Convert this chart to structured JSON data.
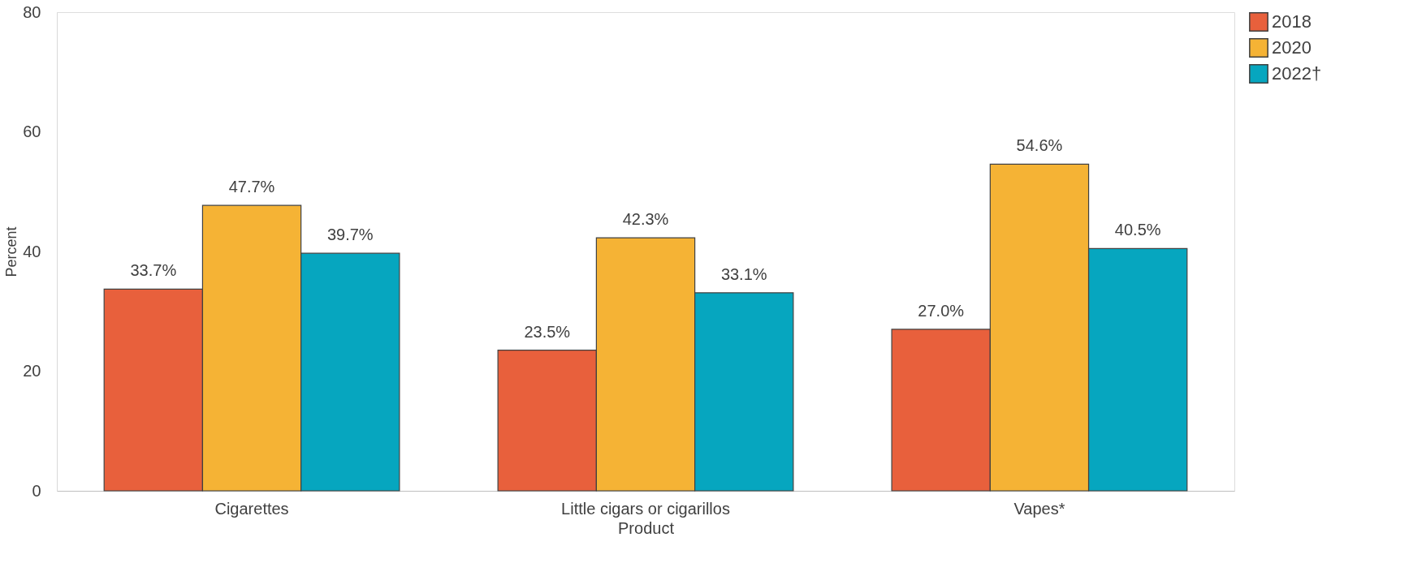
{
  "chart_data": {
    "type": "bar",
    "xlabel": "Product",
    "ylabel": "Percent",
    "categories": [
      "Cigarettes",
      "Little cigars or cigarillos",
      "Vapes*"
    ],
    "series": [
      {
        "name": "2018",
        "color": "#e8603c",
        "values": [
          33.7,
          23.5,
          27.0
        ],
        "value_labels": [
          "33.7%",
          "23.5%",
          "27.0%"
        ]
      },
      {
        "name": "2020",
        "color": "#f5b335",
        "values": [
          47.7,
          42.3,
          54.6
        ],
        "value_labels": [
          "47.7%",
          "42.3%",
          "54.6%"
        ]
      },
      {
        "name": "2022†",
        "color": "#06a6bf",
        "values": [
          39.7,
          33.1,
          40.5
        ],
        "value_labels": [
          "39.7%",
          "33.1%",
          "40.5%"
        ]
      }
    ],
    "ylim": [
      0,
      80
    ],
    "yticks": [
      0,
      20,
      40,
      60,
      80
    ],
    "grid": false,
    "legend": "right"
  }
}
